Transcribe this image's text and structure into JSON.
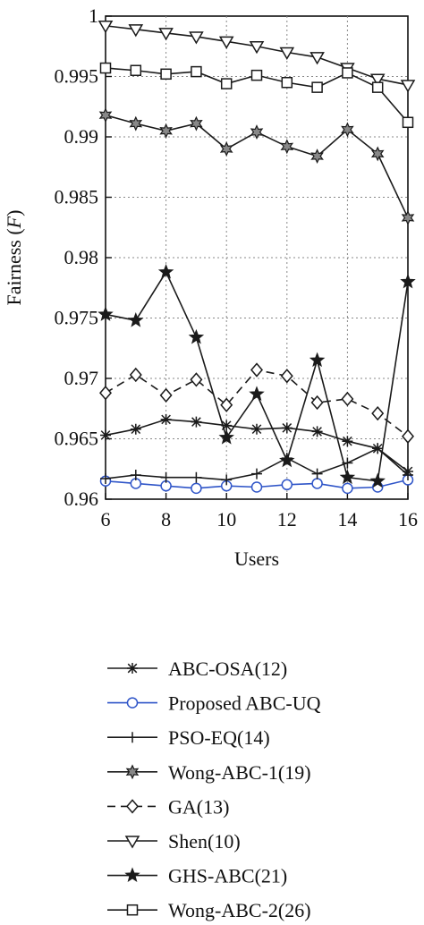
{
  "chart_data": {
    "type": "line",
    "xlabel": "Users",
    "ylabel_prefix": "Fairness (",
    "ylabel_symbol": "F",
    "ylabel_suffix": ")",
    "xlim": [
      6,
      16
    ],
    "ylim": [
      0.96,
      1.0
    ],
    "grid": true,
    "legend_position": "below",
    "x_ticks": [
      {
        "value": 6,
        "label": "6"
      },
      {
        "value": 8,
        "label": "8"
      },
      {
        "value": 10,
        "label": "10"
      },
      {
        "value": 12,
        "label": "12"
      },
      {
        "value": 14,
        "label": "14"
      },
      {
        "value": 16,
        "label": "16"
      }
    ],
    "y_ticks": [
      {
        "value": 0.96,
        "label": "0.96"
      },
      {
        "value": 0.965,
        "label": "0.965"
      },
      {
        "value": 0.97,
        "label": "0.97"
      },
      {
        "value": 0.975,
        "label": "0.975"
      },
      {
        "value": 0.98,
        "label": "0.98"
      },
      {
        "value": 0.985,
        "label": "0.985"
      },
      {
        "value": 0.99,
        "label": "0.99"
      },
      {
        "value": 0.995,
        "label": "0.995"
      },
      {
        "value": 1.0,
        "label": "1"
      }
    ],
    "x": [
      6,
      7,
      8,
      9,
      10,
      11,
      12,
      13,
      14,
      15,
      16
    ],
    "series": [
      {
        "name": "ABC-OSA(12)",
        "marker": "asterisk",
        "color": "#1a1a1a",
        "dash": "solid",
        "values": [
          0.9653,
          0.9658,
          0.9666,
          0.9664,
          0.9661,
          0.9658,
          0.9659,
          0.9656,
          0.9648,
          0.9642,
          0.9623
        ]
      },
      {
        "name": "Proposed ABC-UQ",
        "marker": "circle",
        "color": "#2f55c8",
        "dash": "solid",
        "values": [
          0.9615,
          0.9613,
          0.9611,
          0.9609,
          0.9611,
          0.961,
          0.9612,
          0.9613,
          0.9609,
          0.961,
          0.9616
        ]
      },
      {
        "name": "PSO-EQ(14)",
        "marker": "plus",
        "color": "#1a1a1a",
        "dash": "solid",
        "values": [
          0.9617,
          0.962,
          0.9618,
          0.9618,
          0.9616,
          0.9621,
          0.9634,
          0.9621,
          0.963,
          0.9642,
          0.962
        ]
      },
      {
        "name": "Wong-ABC-1(19)",
        "marker": "hexstar",
        "color": "#1a1a1a",
        "dash": "solid",
        "values": [
          0.9918,
          0.9911,
          0.9905,
          0.9911,
          0.989,
          0.9904,
          0.9892,
          0.9884,
          0.9906,
          0.9886,
          0.9833
        ]
      },
      {
        "name": "GA(13)",
        "marker": "diamond",
        "color": "#1a1a1a",
        "dash": "dashed",
        "values": [
          0.9688,
          0.9703,
          0.9686,
          0.9699,
          0.9678,
          0.9707,
          0.9702,
          0.968,
          0.9683,
          0.9671,
          0.9652
        ]
      },
      {
        "name": "Shen(10)",
        "marker": "triangle-down",
        "color": "#1a1a1a",
        "dash": "solid",
        "values": [
          0.9992,
          0.9989,
          0.9986,
          0.9983,
          0.9979,
          0.9975,
          0.997,
          0.9966,
          0.9957,
          0.9948,
          0.9943
        ]
      },
      {
        "name": "GHS-ABC(21)",
        "marker": "star",
        "color": "#1a1a1a",
        "dash": "solid",
        "values": [
          0.9753,
          0.9748,
          0.9788,
          0.9734,
          0.9651,
          0.9687,
          0.9632,
          0.9715,
          0.9618,
          0.9615,
          0.978
        ]
      },
      {
        "name": "Wong-ABC-2(26)",
        "marker": "square",
        "color": "#1a1a1a",
        "dash": "solid",
        "values": [
          0.9957,
          0.9955,
          0.9952,
          0.9954,
          0.9944,
          0.9951,
          0.9945,
          0.9941,
          0.9953,
          0.9941,
          0.9912
        ]
      }
    ]
  }
}
